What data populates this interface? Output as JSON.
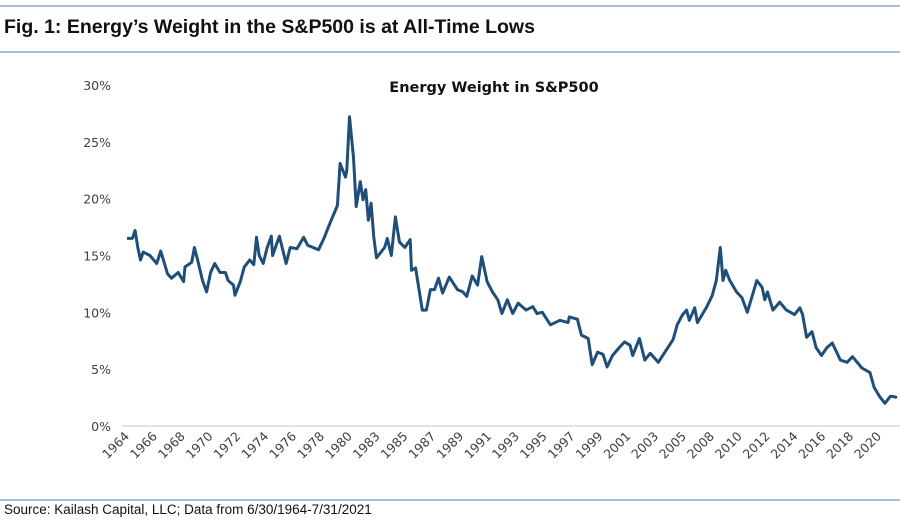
{
  "figure": {
    "title": "Fig. 1:  Energy’s Weight in the S&P500 is at All-Time Lows",
    "source": "Source: Kailash Capital, LLC; Data from 6/30/1964-7/31/2021"
  },
  "chart_data": {
    "type": "line",
    "title": "Energy Weight in S&P500",
    "xlabel": "",
    "ylabel": "",
    "ylim": [
      0,
      30
    ],
    "xlim": [
      1964.5,
      2021.6
    ],
    "y_ticks": [
      0,
      5,
      10,
      15,
      20,
      25,
      30
    ],
    "y_tick_labels": [
      "0%",
      "5%",
      "10%",
      "15%",
      "20%",
      "25%",
      "30%"
    ],
    "x_tick_labels": [
      "1964",
      "1966",
      "1968",
      "1970",
      "1972",
      "1974",
      "1976",
      "1978",
      "1980",
      "1983",
      "1985",
      "1987",
      "1989",
      "1991",
      "1993",
      "1995",
      "1997",
      "1999",
      "2001",
      "2003",
      "2005",
      "2008",
      "2010",
      "2012",
      "2014",
      "2016",
      "2018",
      "2020"
    ],
    "grid": false,
    "legend": "none",
    "color": "#1f4e79",
    "series": [
      {
        "name": "Energy Weight in S&P500",
        "x": [
          1964.5,
          1964.9,
          1965.1,
          1965.3,
          1965.5,
          1965.7,
          1966.2,
          1966.7,
          1967.0,
          1967.5,
          1967.8,
          1968.3,
          1968.7,
          1968.8,
          1969.3,
          1969.5,
          1969.8,
          1970.1,
          1970.4,
          1970.7,
          1971.0,
          1971.4,
          1971.8,
          1972.0,
          1972.4,
          1972.5,
          1972.9,
          1973.2,
          1973.6,
          1973.9,
          1974.1,
          1974.3,
          1974.6,
          1974.9,
          1975.2,
          1975.3,
          1975.8,
          1976.3,
          1976.6,
          1977.1,
          1977.6,
          1977.9,
          1978.7,
          1979.1,
          1979.5,
          1980.1,
          1980.3,
          1980.7,
          1980.8,
          1981.0,
          1981.3,
          1981.5,
          1981.8,
          1982.0,
          1982.2,
          1982.4,
          1982.6,
          1982.8,
          1983.0,
          1983.6,
          1983.8,
          1984.1,
          1984.4,
          1984.7,
          1985.1,
          1985.5,
          1985.6,
          1985.9,
          1986.4,
          1986.7,
          1987.0,
          1987.3,
          1987.6,
          1987.9,
          1988.4,
          1989.0,
          1989.4,
          1989.7,
          1990.1,
          1990.5,
          1990.8,
          1991.2,
          1991.6,
          1992.0,
          1992.3,
          1992.7,
          1993.1,
          1993.5,
          1994.1,
          1994.6,
          1994.9,
          1995.3,
          1995.9,
          1996.6,
          1997.2,
          1997.3,
          1997.9,
          1998.2,
          1998.7,
          1999.0,
          1999.4,
          1999.8,
          2000.1,
          2000.5,
          2001.0,
          2001.4,
          2001.8,
          2002.0,
          2002.5,
          2002.9,
          2003.3,
          2003.9,
          2004.5,
          2005.0,
          2005.3,
          2005.7,
          2006.0,
          2006.2,
          2006.6,
          2006.8,
          2007.5,
          2007.9,
          2008.2,
          2008.5,
          2008.7,
          2008.9,
          2009.2,
          2009.7,
          2010.1,
          2010.5,
          2011.2,
          2011.6,
          2011.8,
          2012.0,
          2012.4,
          2012.9,
          2013.4,
          2014.0,
          2014.4,
          2014.6,
          2014.9,
          2015.3,
          2015.6,
          2016.0,
          2016.4,
          2016.8,
          2017.4,
          2017.9,
          2018.3,
          2019.0,
          2019.6,
          2019.9,
          2020.3,
          2020.7,
          2021.1,
          2021.3,
          2021.6
        ],
        "y": [
          16.5,
          16.5,
          17.2,
          15.7,
          14.6,
          15.3,
          15.0,
          14.3,
          15.4,
          13.4,
          13.0,
          13.5,
          12.7,
          14.0,
          14.4,
          15.7,
          14.3,
          12.8,
          11.8,
          13.5,
          14.3,
          13.5,
          13.5,
          12.8,
          12.4,
          11.5,
          12.7,
          14.0,
          14.6,
          14.2,
          16.6,
          15.0,
          14.3,
          15.7,
          16.7,
          15.0,
          16.7,
          14.3,
          15.7,
          15.6,
          16.6,
          15.9,
          15.5,
          16.5,
          17.7,
          19.4,
          23.1,
          21.9,
          22.5,
          27.2,
          23.6,
          19.3,
          21.5,
          19.9,
          20.8,
          18.1,
          19.6,
          16.6,
          14.8,
          15.7,
          16.5,
          15.0,
          18.4,
          16.2,
          15.7,
          16.4,
          13.7,
          13.9,
          10.2,
          10.2,
          12.0,
          12.0,
          13.0,
          11.7,
          13.1,
          12.0,
          11.8,
          11.4,
          13.2,
          12.4,
          14.9,
          12.7,
          11.8,
          11.1,
          9.9,
          11.1,
          9.9,
          10.8,
          10.2,
          10.5,
          9.9,
          10.0,
          8.9,
          9.3,
          9.1,
          9.6,
          9.4,
          8.0,
          7.7,
          5.4,
          6.5,
          6.3,
          5.2,
          6.2,
          6.9,
          7.4,
          7.1,
          6.2,
          7.7,
          5.8,
          6.4,
          5.6,
          6.7,
          7.6,
          8.9,
          9.8,
          10.2,
          9.3,
          10.4,
          9.1,
          10.5,
          11.5,
          12.8,
          15.7,
          12.8,
          13.7,
          12.8,
          11.8,
          11.3,
          10.0,
          12.8,
          12.2,
          11.1,
          11.8,
          10.2,
          10.9,
          10.2,
          9.8,
          10.4,
          9.8,
          7.8,
          8.3,
          6.9,
          6.2,
          6.9,
          7.3,
          5.8,
          5.6,
          6.1,
          5.1,
          4.7,
          3.4,
          2.6,
          2.0,
          2.6,
          2.6,
          2.5
        ]
      }
    ]
  }
}
